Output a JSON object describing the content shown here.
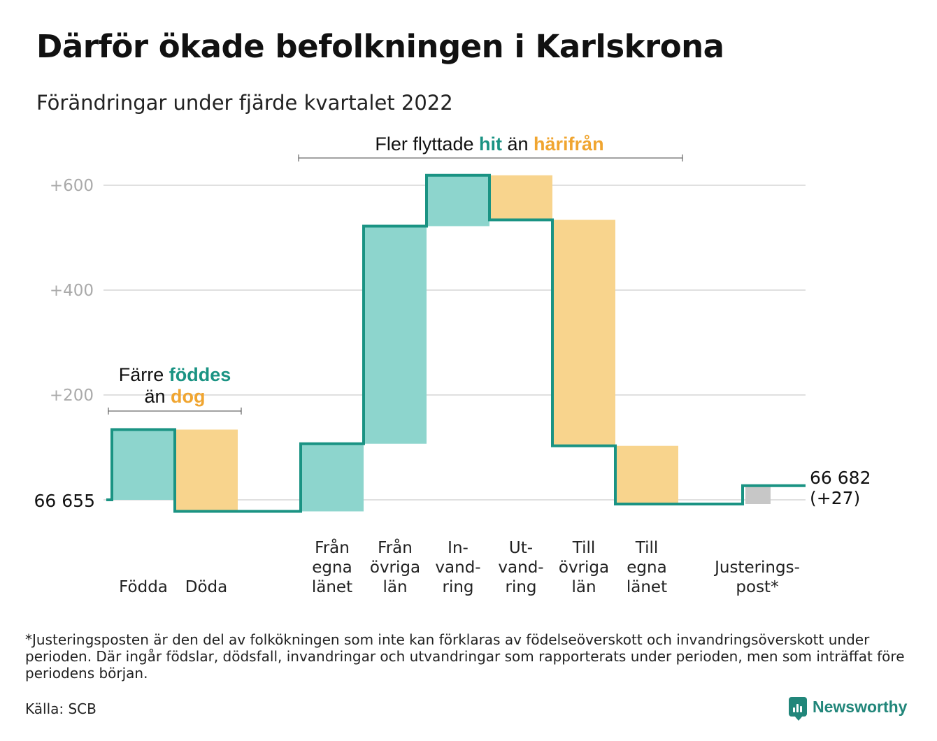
{
  "title": "Därför ökade befolkningen i Karlskrona",
  "subtitle": "Förändringar under fjärde kvartalet 2022",
  "colors": {
    "inflow": "#8dd5cd",
    "outflow": "#f8d48d",
    "adjustment": "#c7c7c7",
    "line": "#1a9383",
    "inflow_text": "#1a9383",
    "outflow_text": "#f0a530",
    "grid": "#e0e0e0",
    "tick": "#aaaaaa"
  },
  "annotations": {
    "natural": {
      "part1": "Färre ",
      "hl1": "föddes",
      "part2": "än ",
      "hl2": "dog"
    },
    "migration": {
      "part1": "Fler flyttade ",
      "hl1": "hit",
      "part2": " än ",
      "hl2": "härifrån"
    }
  },
  "chart_data": {
    "type": "waterfall",
    "baseline": 66655,
    "start_label": "66 655",
    "end_label": "66 682",
    "end_change_label": "(+27)",
    "y_ticks": [
      {
        "value": 200,
        "label": "+200"
      },
      {
        "value": 400,
        "label": "+400"
      },
      {
        "value": 600,
        "label": "+600"
      }
    ],
    "ylim": [
      -60,
      650
    ],
    "grid": true,
    "steps": [
      {
        "label": [
          "Födda"
        ],
        "change": 134,
        "kind": "inflow"
      },
      {
        "label": [
          "Döda"
        ],
        "change": -156,
        "kind": "outflow"
      },
      {
        "label": [
          "Från",
          "egna",
          "länet"
        ],
        "change": 129,
        "kind": "inflow"
      },
      {
        "label": [
          "Från",
          "övriga",
          "län"
        ],
        "change": 415,
        "kind": "inflow"
      },
      {
        "label": [
          "In-",
          "vand-",
          "ring"
        ],
        "change": 97,
        "kind": "inflow"
      },
      {
        "label": [
          "Ut-",
          "vand-",
          "ring"
        ],
        "change": -85,
        "kind": "outflow"
      },
      {
        "label": [
          "Till",
          "övriga",
          "län"
        ],
        "change": -431,
        "kind": "outflow"
      },
      {
        "label": [
          "Till",
          "egna",
          "länet"
        ],
        "change": -111,
        "kind": "outflow"
      },
      {
        "label": [
          "Justerings-",
          "post*"
        ],
        "change": 35,
        "kind": "adjustment"
      }
    ]
  },
  "footnote": "*Justeringsposten är den del av folkökningen som inte kan förklaras av födelseöverskott och invandringsöverskott under perioden. Där ingår födslar, dödsfall, invandringar och utvandringar som rapporterats under perioden, men som inträffat före periodens början.",
  "source": "Källa: SCB",
  "brand": {
    "name": "Newsworthy",
    "icon": "newsworthy-logo-icon"
  }
}
